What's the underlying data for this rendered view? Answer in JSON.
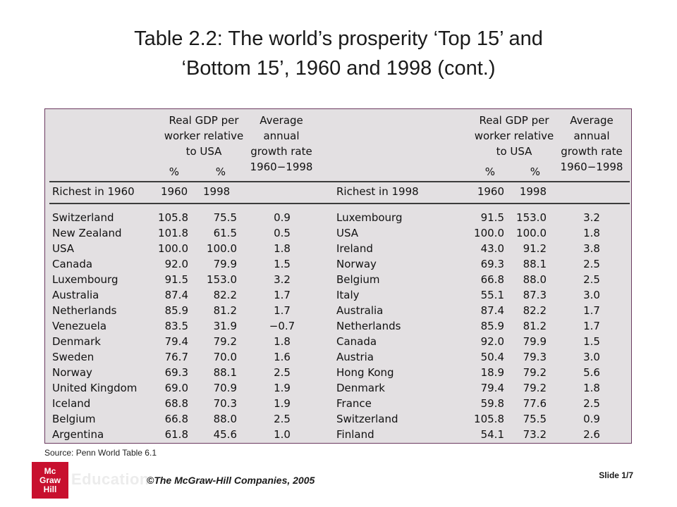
{
  "title": {
    "line1": "Table 2.2: The world’s prosperity ‘Top 15’ and",
    "line2": "‘Bottom 15’, 1960 and 1998 (cont.)"
  },
  "table": {
    "headers": {
      "gdp": "Real GDP per\nworker relative\nto USA",
      "growth": "Average\nannual\ngrowth rate\n1960−1998",
      "pct": "%"
    },
    "left": {
      "row_header": "Richest in 1960",
      "year_a": "1960",
      "year_b": "1998",
      "countries": [
        "Switzerland",
        "New Zealand",
        "USA",
        "Canada",
        "Luxembourg",
        "Australia",
        "Netherlands",
        "Venezuela",
        "Denmark",
        "Sweden",
        "Norway",
        "United Kingdom",
        "Iceland",
        "Belgium",
        "Argentina"
      ],
      "gdp_1960": [
        "105.8",
        "101.8",
        "100.0",
        "92.0",
        "91.5",
        "87.4",
        "85.9",
        "83.5",
        "79.4",
        "76.7",
        "69.3",
        "69.0",
        "68.8",
        "66.8",
        "61.8"
      ],
      "gdp_1998": [
        "75.5",
        "61.5",
        "100.0",
        "79.9",
        "153.0",
        "82.2",
        "81.2",
        "31.9",
        "79.2",
        "70.0",
        "88.1",
        "70.9",
        "70.3",
        "88.0",
        "45.6"
      ],
      "growth": [
        "0.9",
        "0.5",
        "1.8",
        "1.5",
        "3.2",
        "1.7",
        "1.7",
        "−0.7",
        "1.8",
        "1.6",
        "2.5",
        "1.9",
        "1.9",
        "2.5",
        "1.0"
      ]
    },
    "right": {
      "row_header": "Richest in 1998",
      "year_a": "1960",
      "year_b": "1998",
      "countries": [
        "Luxembourg",
        "USA",
        "Ireland",
        "Norway",
        "Belgium",
        "Italy",
        "Australia",
        "Netherlands",
        "Canada",
        "Austria",
        "Hong Kong",
        "Denmark",
        "France",
        "Switzerland",
        "Finland"
      ],
      "gdp_1960": [
        "91.5",
        "100.0",
        "43.0",
        "69.3",
        "66.8",
        "55.1",
        "87.4",
        "85.9",
        "92.0",
        "50.4",
        "18.9",
        "79.4",
        "59.8",
        "105.8",
        "54.1"
      ],
      "gdp_1998": [
        "153.0",
        "100.0",
        "91.2",
        "88.1",
        "88.0",
        "87.3",
        "82.2",
        "81.2",
        "79.9",
        "79.3",
        "79.2",
        "79.2",
        "77.6",
        "75.5",
        "73.2"
      ],
      "growth": [
        "3.2",
        "1.8",
        "3.8",
        "2.5",
        "2.5",
        "3.0",
        "1.7",
        "1.7",
        "1.5",
        "3.0",
        "5.6",
        "1.8",
        "2.5",
        "0.9",
        "2.6"
      ]
    }
  },
  "source": "Source: Penn World Table 6.1",
  "footer": {
    "logo": "Mc Graw Hill",
    "education": "Education",
    "copyright": "©The McGraw-Hill Companies, 2005",
    "slide": "Slide 1/7"
  }
}
